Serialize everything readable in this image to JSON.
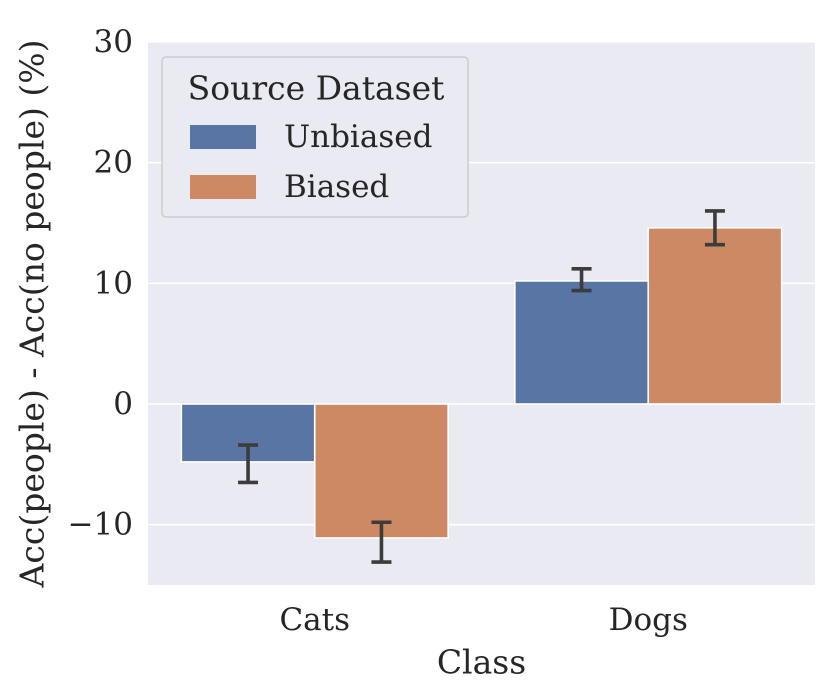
{
  "chart_data": {
    "type": "bar",
    "title": "",
    "xlabel": "Class",
    "ylabel": "Acc(people) - Acc(no people) (%)",
    "categories": [
      "Cats",
      "Dogs"
    ],
    "ylim": [
      -15,
      30
    ],
    "yticks": [
      -10,
      0,
      10,
      20,
      30
    ],
    "ytick_labels": [
      "−10",
      "0",
      "10",
      "20",
      "30"
    ],
    "grid": true,
    "legend": {
      "title": "Source Dataset",
      "position": "top-left"
    },
    "series": [
      {
        "name": "Unbiased",
        "color": "#5875a4",
        "values": [
          -4.8,
          10.2
        ],
        "err_low": [
          -6.5,
          9.4
        ],
        "err_high": [
          -3.4,
          11.2
        ]
      },
      {
        "name": "Biased",
        "color": "#cc8963",
        "values": [
          -11.1,
          14.6
        ],
        "err_low": [
          -13.1,
          13.2
        ],
        "err_high": [
          -9.8,
          16.0
        ]
      }
    ]
  }
}
